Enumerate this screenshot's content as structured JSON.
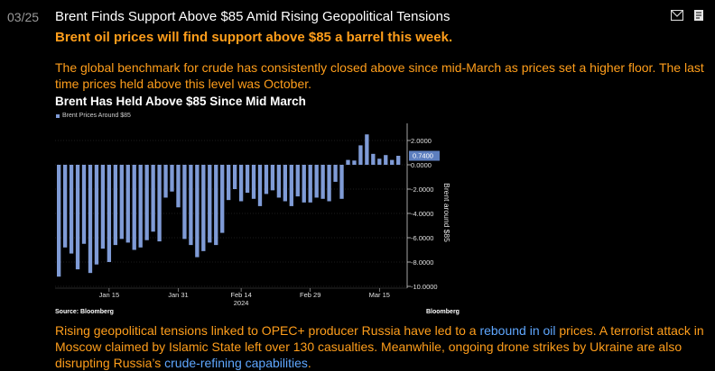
{
  "story": {
    "date": "03/25",
    "headline": "Brent Finds Support Above $85 Amid Rising Geopolitical Tensions",
    "subhead": "Brent oil prices will find support above $85 a barrel this week.",
    "paragraph": "The global benchmark for crude has consistently closed above since mid-March as prices set a higher floor. The last time prices held above this level was October.",
    "bottom": {
      "p1": "Rising geopolitical tensions linked to OPEC+ producer Russia have led to a ",
      "link1": "rebound in oil",
      "p2": " prices. A terrorist attack in Moscow claimed by Islamic State left over 130 casualties. Meanwhile, ongoing drone strikes by Ukraine are also disrupting Russia’s ",
      "link2": "crude-refining capabilities",
      "p3": "."
    }
  },
  "icons": [
    "mail-icon",
    "flag-icon"
  ],
  "colors": {
    "accent": "#ff9e1b",
    "link": "#5fa7ff",
    "bar": "#7f9bd6"
  },
  "chart_data": {
    "type": "bar",
    "title": "Brent Has Held Above $85 Since Mid March",
    "legend": "Brent Prices Around $85",
    "ylabel": "Brent around $85",
    "ylim": [
      -10,
      3
    ],
    "yticks": [
      "2.0000",
      "0.0000",
      "-2.0000",
      "-4.0000",
      "-6.0000",
      "-8.0000",
      "-10.0000"
    ],
    "ytick_values": [
      2,
      0,
      -2,
      -4,
      -6,
      -8,
      -10
    ],
    "last_value_label": "0.7400",
    "xticks": [
      {
        "label": "Jan 15",
        "index": 8
      },
      {
        "label": "Jan 31",
        "index": 19
      },
      {
        "label": "Feb 14\n2024",
        "index": 29
      },
      {
        "label": "Feb 29",
        "index": 40
      },
      {
        "label": "Mar 15",
        "index": 51
      }
    ],
    "values": [
      -9.2,
      -6.8,
      -7.3,
      -8.6,
      -6.5,
      -8.9,
      -8.2,
      -6.9,
      -8.0,
      -6.6,
      -6.1,
      -6.4,
      -7.0,
      -6.8,
      -6.2,
      -5.5,
      -6.3,
      -2.7,
      -2.2,
      -3.5,
      -6.1,
      -6.6,
      -7.6,
      -7.1,
      -6.4,
      -6.6,
      -5.6,
      -2.9,
      -2.0,
      -3.0,
      -2.3,
      -2.8,
      -3.4,
      -2.4,
      -2.1,
      -2.7,
      -3.0,
      -3.4,
      -2.6,
      -3.1,
      -3.1,
      -2.7,
      -2.8,
      -3.0,
      -1.4,
      -2.8,
      0.4,
      0.35,
      1.6,
      2.5,
      0.9,
      0.5,
      0.8,
      0.4,
      0.74
    ]
  }
}
